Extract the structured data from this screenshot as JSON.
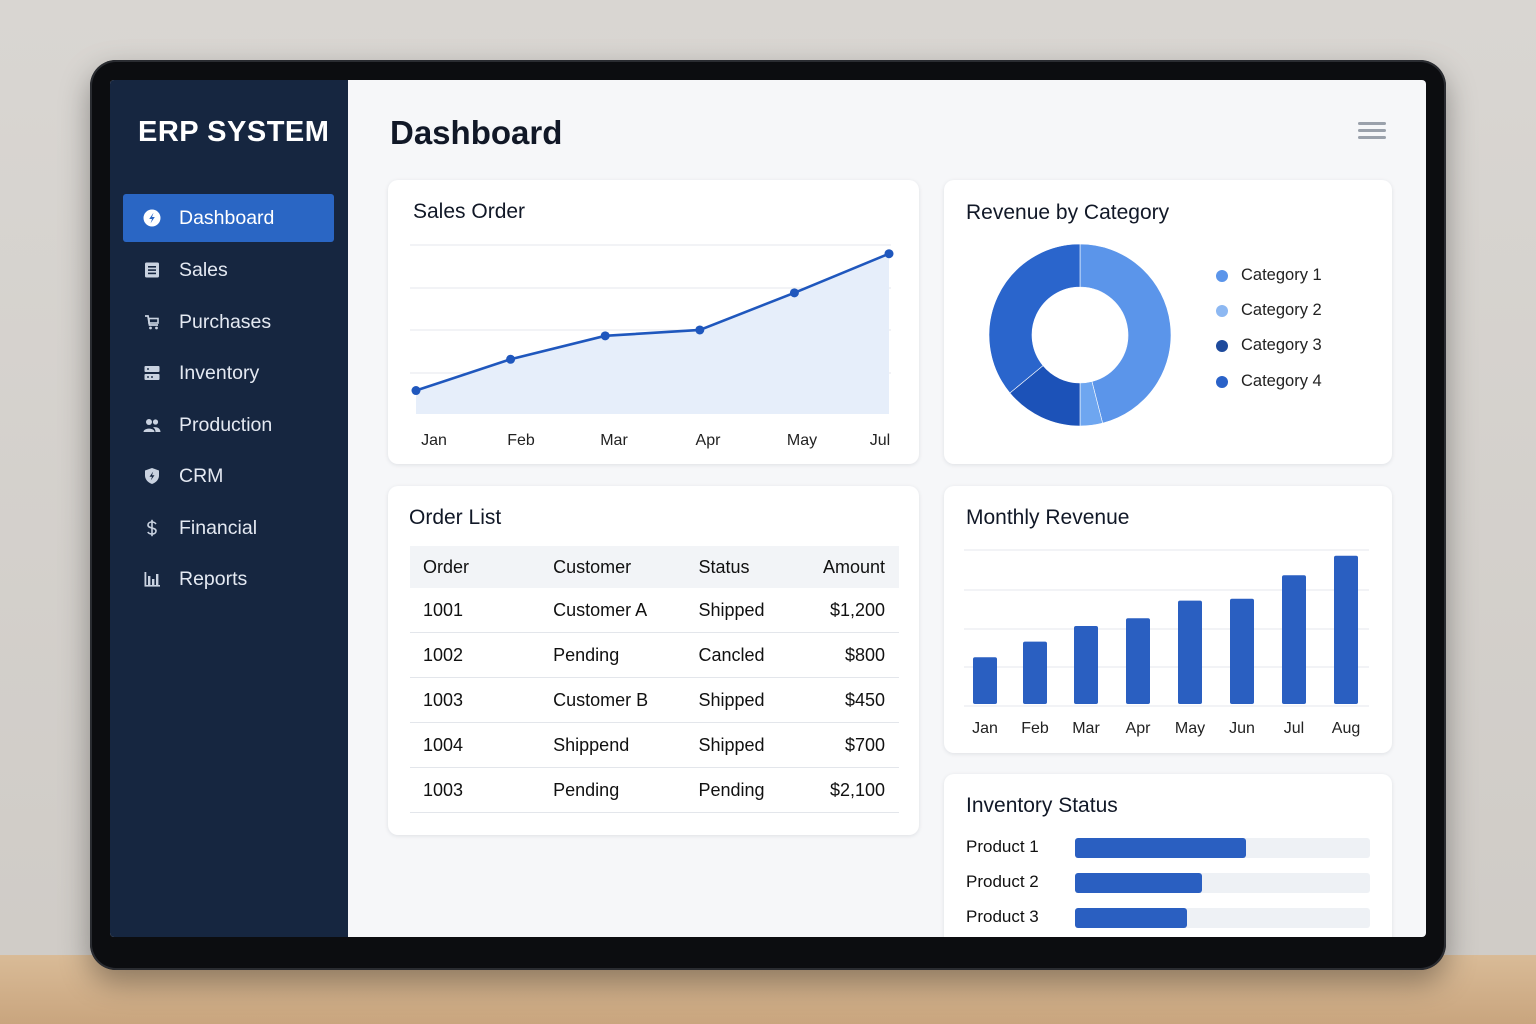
{
  "app": {
    "brand": "ERP SYSTEM",
    "page_title": "Dashboard"
  },
  "sidebar": {
    "items": [
      {
        "label": "Dashboard",
        "icon": "dashboard-icon",
        "active": true
      },
      {
        "label": "Sales",
        "icon": "document-icon"
      },
      {
        "label": "Purchases",
        "icon": "cart-icon"
      },
      {
        "label": "Inventory",
        "icon": "inventory-icon"
      },
      {
        "label": "Production",
        "icon": "users-icon"
      },
      {
        "label": "CRM",
        "icon": "shield-icon"
      },
      {
        "label": "Financial",
        "icon": "dollar-icon"
      },
      {
        "label": "Reports",
        "icon": "bar-chart-icon"
      }
    ]
  },
  "header": {
    "menu_icon": "hamburger-icon"
  },
  "colors": {
    "sidebar_bg": "#162640",
    "accent": "#2a66c4",
    "bar": "#2a5fc1"
  },
  "sales_order": {
    "title": "Sales Order",
    "chart_data": {
      "type": "area",
      "categories": [
        "Jan",
        "Feb",
        "Mar",
        "Apr",
        "May",
        "Jul"
      ],
      "values": [
        6,
        14,
        20,
        21.5,
        31,
        41
      ],
      "ylim": [
        0,
        44
      ],
      "grid": true
    }
  },
  "revenue_by_category": {
    "title": "Revenue by Category",
    "chart_data": {
      "type": "pie",
      "donut": true,
      "labels": [
        "Category 1",
        "Category 2",
        "Category 3",
        "Category 4"
      ],
      "values": [
        46,
        4,
        14,
        36
      ],
      "colors": [
        "#5b95ea",
        "#6ea6f0",
        "#1c52b8",
        "#2a65cc"
      ],
      "legend_colors": [
        "#5b95ea",
        "#8db8f2",
        "#1e4a9c",
        "#2a62c8"
      ],
      "legend": "right"
    }
  },
  "order_list": {
    "title": "Order List",
    "columns": [
      "Order",
      "Customer",
      "Status",
      "Amount"
    ],
    "rows": [
      [
        "1001",
        "Customer A",
        "Shipped",
        "$1,200"
      ],
      [
        "1002",
        "Pending",
        "Cancled",
        "$800"
      ],
      [
        "1003",
        "Customer B",
        "Shipped",
        "$450"
      ],
      [
        "1004",
        "Shippend",
        "Shipped",
        "$700"
      ],
      [
        "1003",
        "Pending",
        "Pending",
        "$2,100"
      ]
    ]
  },
  "monthly_revenue": {
    "title": "Monthly Revenue",
    "chart_data": {
      "type": "bar",
      "categories": [
        "Jan",
        "Feb",
        "Mar",
        "Apr",
        "May",
        "Jun",
        "Jul",
        "Aug"
      ],
      "values": [
        12,
        16,
        20,
        22,
        26.5,
        27,
        33,
        38
      ],
      "ylim": [
        0,
        40
      ],
      "grid": true
    }
  },
  "inventory_status": {
    "title": "Inventory Status",
    "items": [
      {
        "label": "Product 1",
        "level": 0.58
      },
      {
        "label": "Product 2",
        "level": 0.43
      },
      {
        "label": "Product 3",
        "level": 0.38
      }
    ]
  }
}
